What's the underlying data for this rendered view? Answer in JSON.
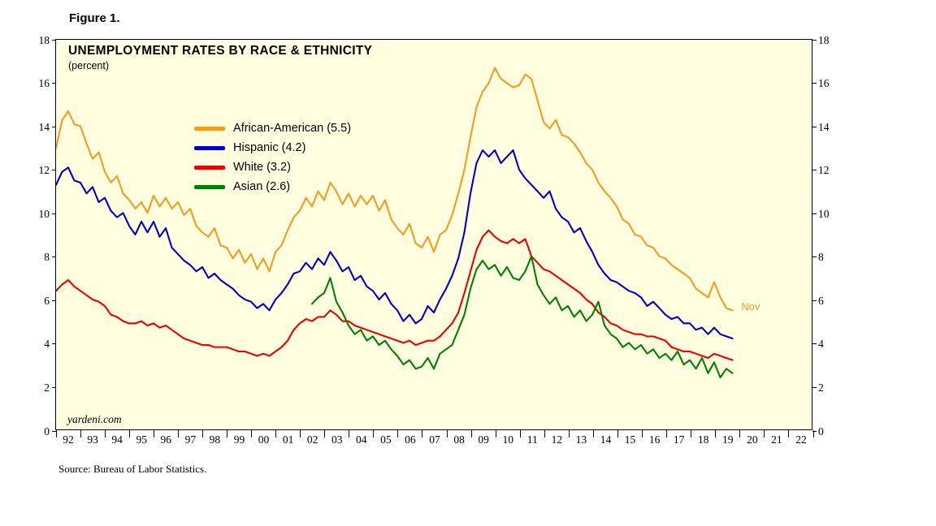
{
  "page": {
    "figure_label": "Figure 1.",
    "source": "Source: Bureau of Labor Statistics."
  },
  "chart_data": {
    "type": "line",
    "title": "UNEMPLOYMENT RATES BY RACE & ETHNICITY",
    "subtitle": "(percent)",
    "watermark": "yardeni.com",
    "plot_bg": "#FFFFE0",
    "legend_position": "upper-left-inside",
    "grid": false,
    "x_axis": {
      "min": 1992,
      "max": 2023,
      "tick_labels": [
        "92",
        "93",
        "94",
        "95",
        "96",
        "97",
        "98",
        "99",
        "00",
        "01",
        "02",
        "03",
        "04",
        "05",
        "06",
        "07",
        "08",
        "09",
        "10",
        "11",
        "12",
        "13",
        "14",
        "15",
        "16",
        "17",
        "18",
        "19",
        "20",
        "21",
        "22"
      ]
    },
    "y_axis": {
      "min": 0,
      "max": 18,
      "ticks": [
        0,
        2,
        4,
        6,
        8,
        10,
        12,
        14,
        16,
        18
      ],
      "sides": "both"
    },
    "annotations": [
      {
        "text": "Nov",
        "x": 2020.05,
        "y": 5.75,
        "color": "#F89B1C"
      }
    ],
    "series": [
      {
        "id": "african-american",
        "label": "African-American (5.5)",
        "latest_value": 5.5,
        "color": "#F89B1C",
        "x_start": 1992.0,
        "x_step": 0.25,
        "values": [
          13.0,
          14.3,
          14.7,
          14.1,
          14.0,
          13.2,
          12.5,
          12.8,
          11.9,
          11.4,
          11.7,
          10.9,
          10.6,
          10.2,
          10.5,
          10.0,
          10.8,
          10.3,
          10.7,
          10.2,
          10.5,
          9.9,
          10.2,
          9.4,
          9.1,
          8.9,
          9.3,
          8.5,
          8.4,
          7.9,
          8.3,
          7.7,
          8.1,
          7.4,
          7.9,
          7.3,
          8.2,
          8.5,
          9.2,
          9.8,
          10.1,
          10.7,
          10.3,
          11.0,
          10.6,
          11.4,
          11.0,
          10.4,
          10.9,
          10.3,
          10.8,
          10.4,
          10.8,
          10.1,
          10.6,
          9.7,
          9.3,
          9.0,
          9.5,
          8.6,
          8.4,
          8.9,
          8.2,
          9.0,
          9.2,
          9.9,
          10.9,
          12.0,
          13.5,
          14.9,
          15.6,
          16.0,
          16.7,
          16.2,
          16.0,
          15.8,
          15.9,
          16.4,
          16.2,
          15.2,
          14.2,
          13.9,
          14.3,
          13.6,
          13.5,
          13.2,
          12.8,
          12.3,
          12.0,
          11.4,
          11.0,
          10.7,
          10.3,
          9.7,
          9.5,
          9.0,
          8.9,
          8.5,
          8.4,
          8.0,
          7.9,
          7.6,
          7.4,
          7.2,
          7.0,
          6.5,
          6.3,
          6.1,
          6.8,
          6.1,
          5.6,
          5.5
        ]
      },
      {
        "id": "hispanic",
        "label": "Hispanic (4.2)",
        "latest_value": 4.2,
        "color": "#0000CD",
        "x_start": 1992.0,
        "x_step": 0.25,
        "values": [
          11.3,
          11.9,
          12.1,
          11.5,
          11.4,
          10.9,
          11.2,
          10.5,
          10.7,
          10.1,
          9.8,
          10.0,
          9.4,
          9.0,
          9.6,
          9.1,
          9.6,
          8.9,
          9.3,
          8.4,
          8.1,
          7.8,
          7.6,
          7.3,
          7.5,
          7.0,
          7.2,
          6.9,
          6.7,
          6.5,
          6.2,
          6.0,
          5.9,
          5.6,
          5.8,
          5.5,
          6.0,
          6.3,
          6.7,
          7.2,
          7.3,
          7.7,
          7.4,
          7.9,
          7.6,
          8.2,
          7.8,
          7.3,
          7.5,
          6.9,
          7.1,
          6.6,
          6.4,
          6.0,
          6.3,
          5.8,
          5.5,
          5.0,
          5.3,
          4.9,
          5.1,
          5.7,
          5.4,
          6.0,
          6.5,
          7.1,
          7.9,
          9.1,
          10.9,
          12.3,
          12.9,
          12.6,
          12.9,
          12.3,
          12.6,
          12.9,
          12.0,
          11.6,
          11.3,
          11.0,
          10.7,
          11.0,
          10.2,
          9.8,
          9.6,
          9.1,
          9.3,
          8.7,
          8.2,
          7.6,
          7.2,
          6.9,
          6.8,
          6.6,
          6.4,
          6.3,
          6.1,
          5.7,
          5.9,
          5.6,
          5.3,
          5.1,
          5.2,
          4.9,
          4.9,
          4.6,
          4.7,
          4.4,
          4.7,
          4.4,
          4.3,
          4.2
        ]
      },
      {
        "id": "white",
        "label": "White (3.2)",
        "latest_value": 3.2,
        "color": "#EE0000",
        "x_start": 1992.0,
        "x_step": 0.25,
        "values": [
          6.4,
          6.7,
          6.9,
          6.6,
          6.4,
          6.2,
          6.0,
          5.9,
          5.7,
          5.3,
          5.2,
          5.0,
          4.9,
          4.9,
          5.0,
          4.8,
          4.9,
          4.7,
          4.8,
          4.6,
          4.4,
          4.2,
          4.1,
          4.0,
          3.9,
          3.9,
          3.8,
          3.8,
          3.8,
          3.7,
          3.6,
          3.6,
          3.5,
          3.4,
          3.5,
          3.4,
          3.6,
          3.8,
          4.1,
          4.6,
          4.9,
          5.1,
          5.0,
          5.2,
          5.2,
          5.5,
          5.3,
          5.0,
          5.0,
          4.8,
          4.7,
          4.6,
          4.5,
          4.4,
          4.3,
          4.2,
          4.1,
          4.0,
          4.1,
          3.9,
          4.0,
          4.1,
          4.1,
          4.3,
          4.6,
          4.9,
          5.4,
          6.3,
          7.3,
          8.3,
          8.9,
          9.2,
          8.9,
          8.7,
          8.6,
          8.8,
          8.6,
          8.8,
          8.0,
          7.7,
          7.4,
          7.3,
          7.1,
          6.9,
          6.7,
          6.5,
          6.3,
          6.0,
          5.8,
          5.4,
          5.2,
          4.9,
          4.8,
          4.6,
          4.5,
          4.4,
          4.4,
          4.3,
          4.3,
          4.2,
          4.1,
          3.8,
          3.7,
          3.6,
          3.6,
          3.5,
          3.4,
          3.3,
          3.5,
          3.4,
          3.3,
          3.2
        ]
      },
      {
        "id": "asian",
        "label": "Asian (2.6)",
        "latest_value": 2.6,
        "color": "#008000",
        "x_start": 2002.5,
        "x_step": 0.25,
        "values": [
          5.8,
          6.1,
          6.3,
          7.0,
          5.9,
          5.4,
          4.8,
          4.4,
          4.6,
          4.1,
          4.3,
          3.9,
          4.1,
          3.7,
          3.4,
          3.0,
          3.2,
          2.8,
          2.9,
          3.3,
          2.8,
          3.5,
          3.7,
          3.9,
          4.6,
          5.3,
          6.5,
          7.4,
          7.8,
          7.4,
          7.6,
          7.1,
          7.5,
          7.0,
          6.9,
          7.3,
          8.0,
          6.7,
          6.2,
          5.8,
          6.1,
          5.5,
          5.7,
          5.2,
          5.5,
          5.0,
          5.3,
          5.9,
          4.8,
          4.4,
          4.2,
          3.8,
          4.0,
          3.7,
          3.9,
          3.5,
          3.7,
          3.3,
          3.5,
          3.2,
          3.6,
          3.0,
          3.2,
          2.8,
          3.3,
          2.6,
          3.1,
          2.4,
          2.8,
          2.6
        ]
      }
    ]
  }
}
